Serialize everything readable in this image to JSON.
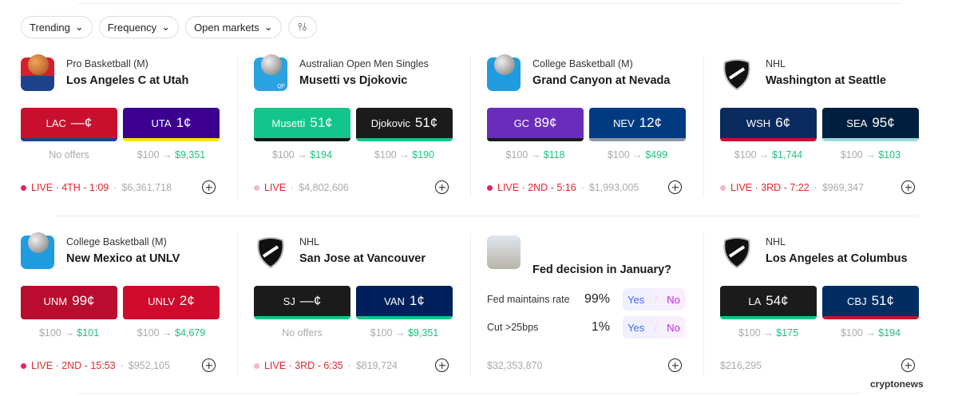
{
  "filters": {
    "trending": "Trending",
    "frequency": "Frequency",
    "open_markets": "Open markets",
    "filter_icon": "sliders-icon"
  },
  "colors": {
    "green": "#1ec27e",
    "live": "#e3262f"
  },
  "cards": [
    {
      "category": "Pro Basketball (M)",
      "title": "Los Angeles C at Utah",
      "logo": "basketball-icon",
      "outcomes": [
        {
          "team": "LAC",
          "price": "—¢",
          "bg": "#c8102e",
          "stripe": "#1d428a",
          "stake": "",
          "payout": "",
          "note": "No offers"
        },
        {
          "team": "UTA",
          "price": "1¢",
          "bg": "#3c0091",
          "stripe": "#f9e300",
          "stake": "$100 →",
          "payout": "$9,351"
        }
      ],
      "status": "LIVE · 4TH - 1:09",
      "volume": "$6,361,718"
    },
    {
      "category": "Australian Open Men Singles",
      "title": "Musetti vs Djokovic",
      "logo": "tennis-ball-icon",
      "badge": "QF",
      "outcomes": [
        {
          "team": "Musetti",
          "price": "51¢",
          "bg": "#12c58a",
          "stripe": "#111111",
          "stake": "$100 →",
          "payout": "$194"
        },
        {
          "team": "Djokovic",
          "price": "51¢",
          "bg": "#1b1b1b",
          "stripe": "#12c58a",
          "stake": "$100 →",
          "payout": "$190"
        }
      ],
      "status": "LIVE",
      "volume": "$4,802,606"
    },
    {
      "category": "College Basketball (M)",
      "title": "Grand Canyon at Nevada",
      "logo": "basketball-icon",
      "outcomes": [
        {
          "team": "GC",
          "price": "89¢",
          "bg": "#6a2dbb",
          "stripe": "#1a1a1a",
          "stake": "$100 →",
          "payout": "$118"
        },
        {
          "team": "NEV",
          "price": "12¢",
          "bg": "#003b82",
          "stripe": "#8f98a6",
          "stake": "$100 →",
          "payout": "$499"
        }
      ],
      "status": "LIVE · 2ND - 5:16",
      "volume": "$1,993,005"
    },
    {
      "category": "NHL",
      "title": "Washington at Seattle",
      "logo": "nhl-shield-icon",
      "outcomes": [
        {
          "team": "WSH",
          "price": "6¢",
          "bg": "#0b2a5e",
          "stripe": "#c8102e",
          "stake": "$100 →",
          "payout": "$1,744"
        },
        {
          "team": "SEA",
          "price": "95¢",
          "bg": "#001f3f",
          "stripe": "#99d9d9",
          "stake": "$100 →",
          "payout": "$103"
        }
      ],
      "status": "LIVE · 3RD - 7:22",
      "volume": "$969,347"
    },
    {
      "category": "College Basketball (M)",
      "title": "New Mexico at UNLV",
      "logo": "basketball-icon",
      "outcomes": [
        {
          "team": "UNM",
          "price": "99¢",
          "bg": "#ba0c2f",
          "stripe": "#ba0c2f",
          "stake": "$100 →",
          "payout": "$101"
        },
        {
          "team": "UNLV",
          "price": "2¢",
          "bg": "#cf0a2c",
          "stripe": "#cf0a2c",
          "stake": "$100 →",
          "payout": "$4,679"
        }
      ],
      "status": "LIVE · 2ND - 15:53",
      "volume": "$952,105"
    },
    {
      "category": "NHL",
      "title": "San Jose at Vancouver",
      "logo": "nhl-shield-icon",
      "outcomes": [
        {
          "team": "SJ",
          "price": "—¢",
          "bg": "#1b1b1b",
          "stripe": "#12c58a",
          "stake": "",
          "payout": "",
          "note": "No offers"
        },
        {
          "team": "VAN",
          "price": "1¢",
          "bg": "#00205b",
          "stripe": "#12c58a",
          "stake": "$100 →",
          "payout": "$9,351"
        }
      ],
      "status": "LIVE · 3RD - 6:35",
      "volume": "$819,724"
    },
    {
      "title": "Fed decision in January?",
      "logo": "federal-reserve-building-image",
      "options": [
        {
          "label": "Fed maintains rate",
          "pct": "99%",
          "yes": "Yes",
          "no": "No"
        },
        {
          "label": "Cut >25bps",
          "pct": "1%",
          "yes": "Yes",
          "no": "No"
        }
      ],
      "volume": "$32,353,870"
    },
    {
      "category": "NHL",
      "title": "Los Angeles at Columbus",
      "logo": "nhl-shield-icon",
      "outcomes": [
        {
          "team": "LA",
          "price": "54¢",
          "bg": "#1b1b1b",
          "stripe": "#12c58a",
          "stake": "$100 →",
          "payout": "$175"
        },
        {
          "team": "CBJ",
          "price": "51¢",
          "bg": "#002d62",
          "stripe": "#ce1126",
          "stake": "$100 →",
          "payout": "$194"
        }
      ],
      "volume": "$216,295"
    }
  ],
  "watermark": "cryptonews"
}
